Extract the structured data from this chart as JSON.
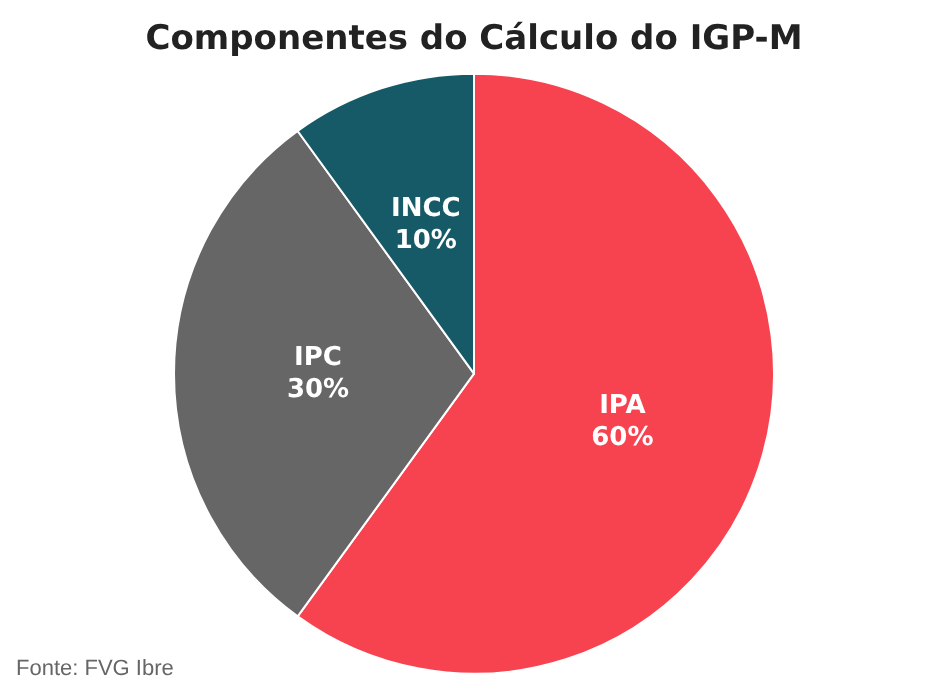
{
  "chart_data": {
    "type": "pie",
    "title": "Componentes do Cálculo do IGP-M",
    "categories": [
      "IPA",
      "IPC",
      "INCC"
    ],
    "values": [
      60,
      30,
      10
    ],
    "colors": [
      "#f7434f",
      "#666666",
      "#175a67"
    ],
    "value_labels": [
      "60%",
      "30%",
      "10%"
    ],
    "annotations": [
      "Fonte: FVG Ibre"
    ]
  }
}
